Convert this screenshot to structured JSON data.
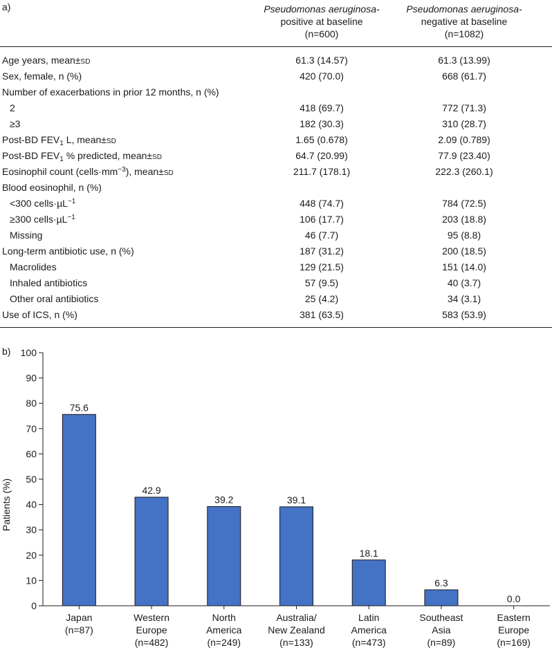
{
  "panel_a": {
    "label": "a)",
    "col1": {
      "title_italic": "Pseudomonas aeruginosa-",
      "title_line2": "positive at baseline",
      "n": "(n=600)"
    },
    "col2": {
      "title_italic": "Pseudomonas aeruginosa-",
      "title_line2": "negative at baseline",
      "n": "(n=1082)"
    },
    "rows": [
      {
        "label": "Age years, mean±sd",
        "c1": "61.3 (14.57)",
        "c2": "61.3 (13.99)"
      },
      {
        "label": "Sex, female, n (%)",
        "c1": "420 (70.0)",
        "c2": "668 (61.7)"
      },
      {
        "label": "Number of exacerbations in prior 12 months, n (%)",
        "c1": "",
        "c2": ""
      },
      {
        "label": "2",
        "c1": "418 (69.7)",
        "c2": "772 (71.3)"
      },
      {
        "label": "≥3",
        "c1": "182 (30.3)",
        "c2": "310 (28.7)"
      },
      {
        "label_a": "Post-BD FEV",
        "label_sub": "1",
        "label_b": " L, mean±sd",
        "c1": "1.65 (0.678)",
        "c2": "2.09 (0.789)"
      },
      {
        "label_a": "Post-BD FEV",
        "label_sub": "1",
        "label_b": " % predicted, mean±sd",
        "c1": "64.7 (20.99)",
        "c2": "77.9 (23.40)"
      },
      {
        "label_a": "Eosinophil count (cells·mm",
        "label_sup": "−3",
        "label_b": "), mean±sd",
        "c1": "211.7 (178.1)",
        "c2": "222.3 (260.1)"
      },
      {
        "label": "Blood eosinophil, n (%)",
        "c1": "",
        "c2": ""
      },
      {
        "label_a": "<300 cells·µL",
        "label_sup": "−1",
        "c1": "448 (74.7)",
        "c2": "784 (72.5)"
      },
      {
        "label_a": "≥300 cells·µL",
        "label_sup": "−1",
        "c1": "106 (17.7)",
        "c2": "203 (18.8)"
      },
      {
        "label": "Missing",
        "c1": "46 (7.7)",
        "c2": "95 (8.8)"
      },
      {
        "label": "Long-term antibiotic use, n (%)",
        "c1": "187 (31.2)",
        "c2": "200 (18.5)"
      },
      {
        "label": "Macrolides",
        "c1": "129 (21.5)",
        "c2": "151 (14.0)"
      },
      {
        "label": "Inhaled antibiotics",
        "c1": "57 (9.5)",
        "c2": "40 (3.7)"
      },
      {
        "label": "Other oral antibiotics",
        "c1": "25 (4.2)",
        "c2": "34 (3.1)"
      },
      {
        "label": "Use of ICS, n (%)",
        "c1": "381 (63.5)",
        "c2": "583 (53.9)"
      }
    ]
  },
  "panel_b": {
    "label": "b)"
  },
  "chart_data": {
    "type": "bar",
    "categories": [
      [
        "Japan",
        "(n=87)"
      ],
      [
        "Western",
        "Europe",
        "(n=482)"
      ],
      [
        "North",
        "America",
        "(n=249)"
      ],
      [
        "Australia/",
        "New Zealand",
        "(n=133)"
      ],
      [
        "Latin",
        "America",
        "(n=473)"
      ],
      [
        "Southeast",
        "Asia",
        "(n=89)"
      ],
      [
        "Eastern",
        "Europe",
        "(n=169)"
      ]
    ],
    "values": [
      75.6,
      42.9,
      39.2,
      39.1,
      18.1,
      6.3,
      0.0
    ],
    "value_labels": [
      "75.6",
      "42.9",
      "39.2",
      "39.1",
      "18.1",
      "6.3",
      "0.0"
    ],
    "ylabel": "Patients (%)",
    "ylim": [
      0,
      100
    ],
    "yticks": [
      0,
      10,
      20,
      30,
      40,
      50,
      60,
      70,
      80,
      90,
      100
    ],
    "bar_color": "#4472c4",
    "bar_edge": "#1a1a1a"
  }
}
